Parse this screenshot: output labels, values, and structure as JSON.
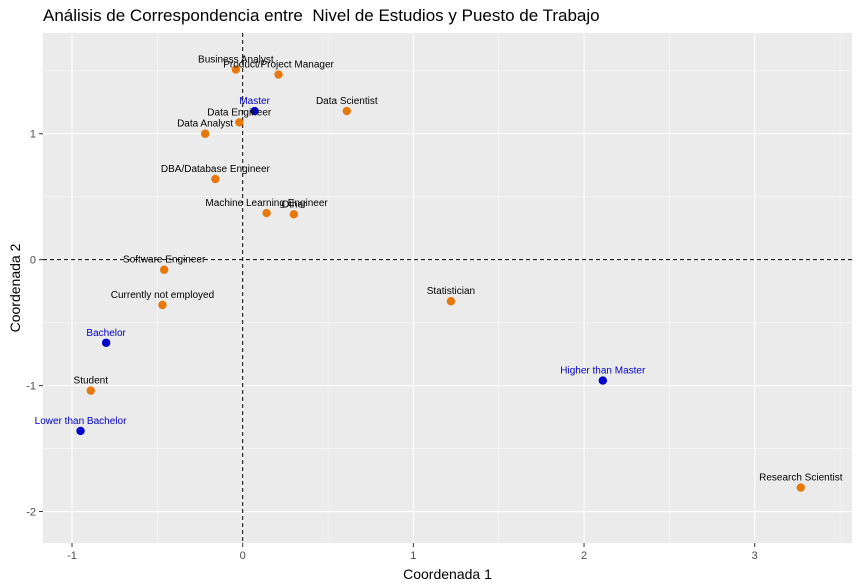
{
  "chart_data": {
    "type": "scatter",
    "title": "Análisis de Correspondencia entre  Nivel de Estudios y Puesto de Trabajo",
    "xlabel": "Coordenada 1",
    "ylabel": "Coordenada 2",
    "xlim": [
      -1.17,
      3.57
    ],
    "ylim": [
      -2.25,
      1.8
    ],
    "xticks": [
      -1,
      0,
      1,
      2,
      3
    ],
    "yticks": [
      -2,
      -1,
      0,
      1
    ],
    "grid": true,
    "reference_lines": {
      "x": 0,
      "y": 0,
      "style": "dashed"
    },
    "colors": {
      "education": "#0000cd",
      "job": "#e8780a",
      "education_label": "#0000cd",
      "job_label": "#000000",
      "panel": "#ebebeb",
      "grid": "#ffffff"
    },
    "series": [
      {
        "color": "#0000cd",
        "points": [
          {
            "label": "Master",
            "x": 0.07,
            "y": 1.18
          },
          {
            "label": "Bachelor",
            "x": -0.8,
            "y": -0.66
          },
          {
            "label": "Lower than Bachelor",
            "x": -0.95,
            "y": -1.36
          },
          {
            "label": "Higher than Master",
            "x": 2.11,
            "y": -0.96
          }
        ]
      },
      {
        "color": "#e8780a",
        "points": [
          {
            "label": "Business Analyst",
            "x": -0.04,
            "y": 1.51
          },
          {
            "label": "Product/Project Manager",
            "x": 0.21,
            "y": 1.47
          },
          {
            "label": "Data Engineer",
            "x": -0.02,
            "y": 1.09
          },
          {
            "label": "Data Scientist",
            "x": 0.61,
            "y": 1.18
          },
          {
            "label": "Data Analyst",
            "x": -0.22,
            "y": 1.0
          },
          {
            "label": "DBA/Database Engineer",
            "x": -0.16,
            "y": 0.64
          },
          {
            "label": "Machine Learning Engineer",
            "x": 0.14,
            "y": 0.37
          },
          {
            "label": "Other",
            "x": 0.3,
            "y": 0.36
          },
          {
            "label": "Software Engineer",
            "x": -0.46,
            "y": -0.08
          },
          {
            "label": "Currently not employed",
            "x": -0.47,
            "y": -0.36
          },
          {
            "label": "Statistician",
            "x": 1.22,
            "y": -0.33
          },
          {
            "label": "Student",
            "x": -0.89,
            "y": -1.04
          },
          {
            "label": "Research Scientist",
            "x": 3.27,
            "y": -1.81
          }
        ]
      }
    ]
  }
}
